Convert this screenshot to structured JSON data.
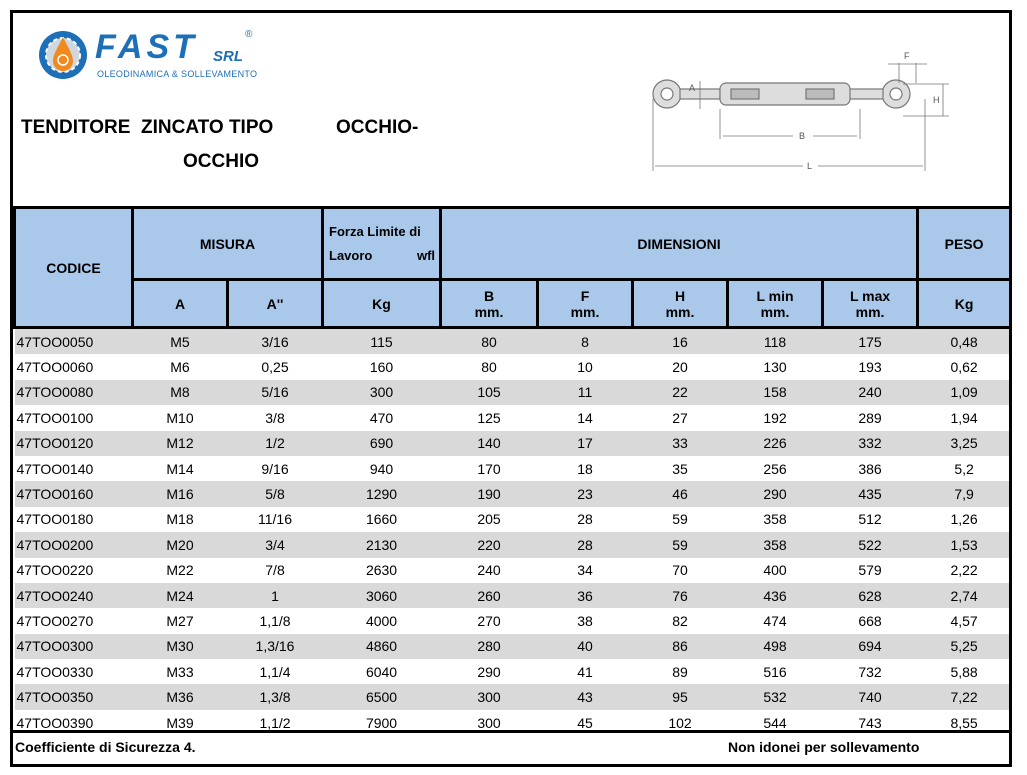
{
  "logo": {
    "brand": "FAST",
    "suffix": "SRL",
    "registered": "®",
    "tagline": "OLEODINAMICA & SOLLEVAMENTO"
  },
  "title": {
    "line1a": "TENDITORE  ZINCATO TIPO",
    "line1b": "OCCHIO-",
    "line2": "OCCHIO"
  },
  "drawing": {
    "labels": {
      "a": "A",
      "b": "B",
      "f": "F",
      "h": "H",
      "l": "L"
    }
  },
  "colors": {
    "header_bg": "#a9c8ea",
    "row_alt": "#d9d9d9",
    "brand": "#1d6fb8"
  },
  "table": {
    "headers": {
      "codice": "CODICE",
      "misura": "MISURA",
      "forza_line1": "Forza Limite di",
      "forza_line2a": "Lavoro",
      "forza_line2b": "wfl",
      "dimensioni": "DIMENSIONI",
      "peso": "PESO",
      "a": "A",
      "a_inch": "A''",
      "kg": "Kg",
      "b": "B",
      "f": "F",
      "h": "H",
      "lmin": "L min",
      "lmax": "L max",
      "mm": "mm.",
      "peso_kg": "Kg"
    },
    "rows": [
      [
        "47TOO0050",
        "M5",
        "3/16",
        "115",
        "80",
        "8",
        "16",
        "118",
        "175",
        "0,48"
      ],
      [
        "47TOO0060",
        "M6",
        "0,25",
        "160",
        "80",
        "10",
        "20",
        "130",
        "193",
        "0,62"
      ],
      [
        "47TOO0080",
        "M8",
        "5/16",
        "300",
        "105",
        "11",
        "22",
        "158",
        "240",
        "1,09"
      ],
      [
        "47TOO0100",
        "M10",
        "3/8",
        "470",
        "125",
        "14",
        "27",
        "192",
        "289",
        "1,94"
      ],
      [
        "47TOO0120",
        "M12",
        "1/2",
        "690",
        "140",
        "17",
        "33",
        "226",
        "332",
        "3,25"
      ],
      [
        "47TOO0140",
        "M14",
        "9/16",
        "940",
        "170",
        "18",
        "35",
        "256",
        "386",
        "5,2"
      ],
      [
        "47TOO0160",
        "M16",
        "5/8",
        "1290",
        "190",
        "23",
        "46",
        "290",
        "435",
        "7,9"
      ],
      [
        "47TOO0180",
        "M18",
        "11/16",
        "1660",
        "205",
        "28",
        "59",
        "358",
        "512",
        "1,26"
      ],
      [
        "47TOO0200",
        "M20",
        "3/4",
        "2130",
        "220",
        "28",
        "59",
        "358",
        "522",
        "1,53"
      ],
      [
        "47TOO0220",
        "M22",
        "7/8",
        "2630",
        "240",
        "34",
        "70",
        "400",
        "579",
        "2,22"
      ],
      [
        "47TOO0240",
        "M24",
        "1",
        "3060",
        "260",
        "36",
        "76",
        "436",
        "628",
        "2,74"
      ],
      [
        "47TOO0270",
        "M27",
        "1,1/8",
        "4000",
        "270",
        "38",
        "82",
        "474",
        "668",
        "4,57"
      ],
      [
        "47TOO0300",
        "M30",
        "1,3/16",
        "4860",
        "280",
        "40",
        "86",
        "498",
        "694",
        "5,25"
      ],
      [
        "47TOO0330",
        "M33",
        "1,1/4",
        "6040",
        "290",
        "41",
        "89",
        "516",
        "732",
        "5,88"
      ],
      [
        "47TOO0350",
        "M36",
        "1,3/8",
        "6500",
        "300",
        "43",
        "95",
        "532",
        "740",
        "7,22"
      ],
      [
        "47TOO0390",
        "M39",
        "1,1/2",
        "7900",
        "300",
        "45",
        "102",
        "544",
        "743",
        "8,55"
      ]
    ]
  },
  "footer": {
    "left": "Coefficiente di Sicurezza 4.",
    "right": "Non idonei per sollevamento"
  }
}
